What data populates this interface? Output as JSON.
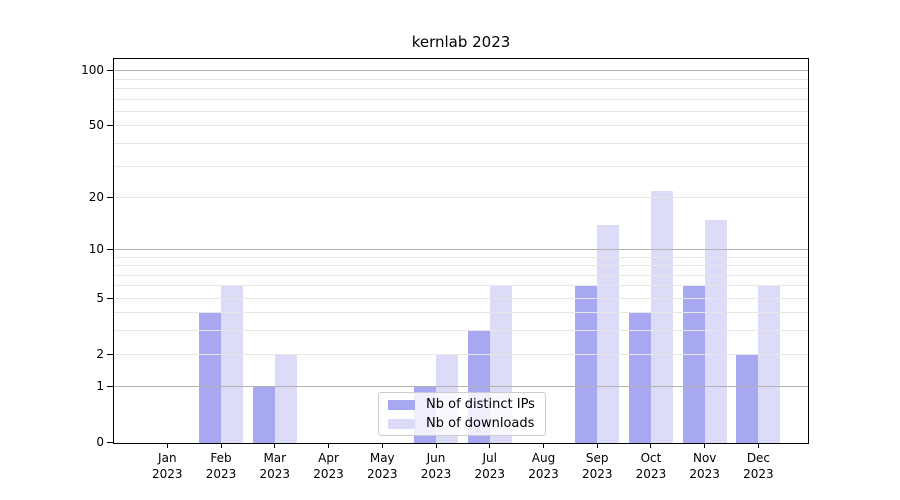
{
  "chart_data": {
    "type": "bar",
    "title": "kernlab 2023",
    "categories": [
      "Jan",
      "Feb",
      "Mar",
      "Apr",
      "May",
      "Jun",
      "Jul",
      "Aug",
      "Sep",
      "Oct",
      "Nov",
      "Dec"
    ],
    "year_label": "2023",
    "series": [
      {
        "name": "Nb of distinct IPs",
        "color": "#a8a8f2",
        "values": [
          0,
          4,
          1,
          0,
          0,
          1,
          3,
          0,
          6,
          4,
          6,
          2
        ]
      },
      {
        "name": "Nb of downloads",
        "color": "#dcdcf8",
        "values": [
          0,
          6,
          2,
          0,
          0,
          2,
          6,
          0,
          14,
          22,
          15,
          6
        ]
      }
    ],
    "yscale": "log1p",
    "ylim": [
      0,
      118
    ],
    "y_ticks": [
      0,
      1,
      2,
      5,
      10,
      20,
      50,
      100
    ],
    "y_major_gridlines": [
      1,
      10,
      100
    ],
    "y_minor_gridlines": [
      2,
      3,
      4,
      5,
      6,
      7,
      8,
      9,
      20,
      30,
      40,
      50,
      60,
      70,
      80,
      90
    ],
    "grid": true,
    "legend_position": "lower center"
  },
  "colors": {
    "bar_distinct_ips": "#a8a8f2",
    "bar_downloads": "#dcdcf8",
    "major_gridline": "#b2b2b2",
    "minor_gridline": "#e7e7e7",
    "spine": "#000000",
    "legend_border": "#cccccc"
  }
}
